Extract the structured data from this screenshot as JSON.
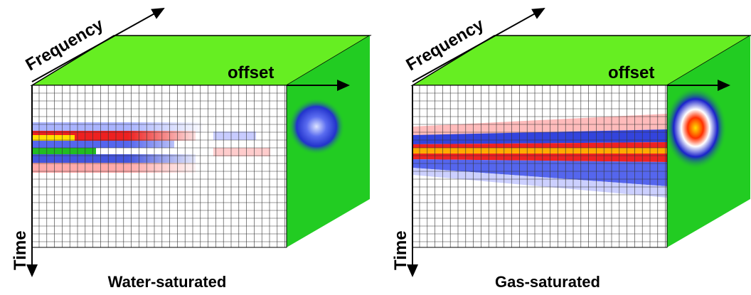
{
  "panels": [
    {
      "frequency_label": "Frequency",
      "offset_label": "offset",
      "time_label": "Time",
      "caption": "Water-saturated"
    },
    {
      "frequency_label": "Frequency",
      "offset_label": "offset",
      "time_label": "Time",
      "caption": "Gas-saturated"
    }
  ]
}
